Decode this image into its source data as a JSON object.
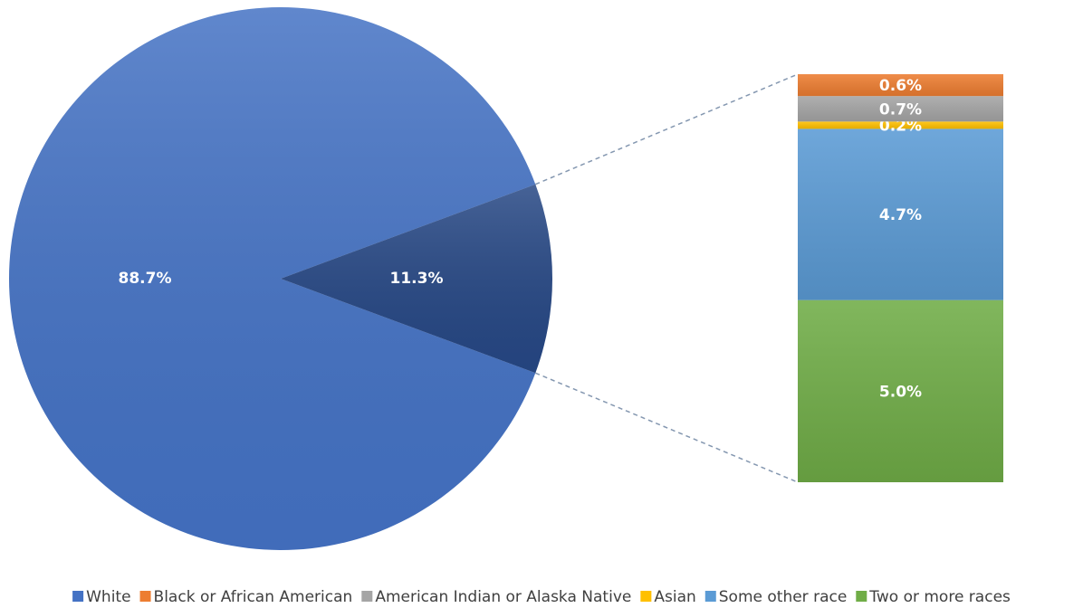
{
  "chart_data": {
    "type": "bar-of-pie",
    "categories": [
      "White",
      "Black or African American",
      "American Indian or Alaska Native",
      "Asian",
      "Some other race",
      "Two or more races"
    ],
    "values": [
      88.7,
      0.6,
      0.7,
      0.2,
      4.7,
      5.0
    ],
    "value_labels": [
      "88.7%",
      "0.6%",
      "0.7%",
      "0.2%",
      "4.7%",
      "5.0%"
    ],
    "colors": [
      "#4472c4",
      "#ed7d31",
      "#a5a5a5",
      "#ffc000",
      "#5b9bd5",
      "#70ad47"
    ],
    "other": {
      "value": 11.3,
      "label": "11.3%",
      "color": "#264784"
    },
    "legend": "bottom"
  }
}
